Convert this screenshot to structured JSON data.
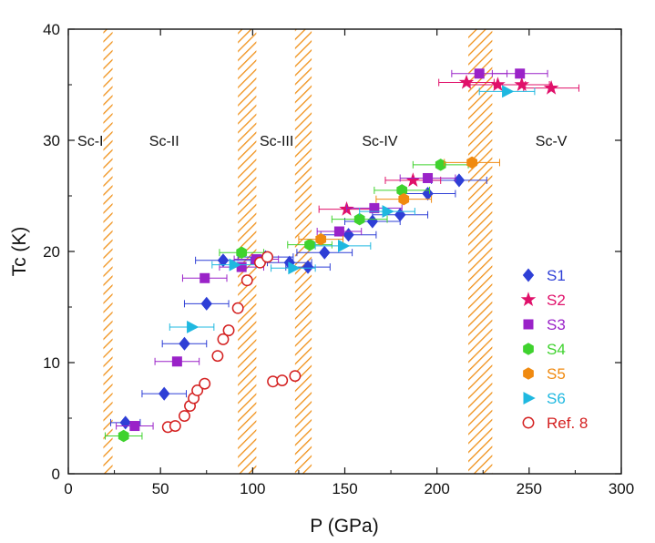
{
  "chart_data": {
    "type": "scatter",
    "xlabel": "P (GPa)",
    "ylabel": "Tc (K)",
    "xlim": [
      0,
      300
    ],
    "ylim": [
      0,
      40
    ],
    "x_ticks": [
      0,
      50,
      100,
      150,
      200,
      250,
      300
    ],
    "y_ticks": [
      0,
      10,
      20,
      30,
      40
    ],
    "grid": false,
    "legend_position": "right",
    "phase_boundaries": [
      {
        "from": 19,
        "to": 24
      },
      {
        "from": 92,
        "to": 102
      },
      {
        "from": 123,
        "to": 132
      },
      {
        "from": 217,
        "to": 230
      }
    ],
    "phases": [
      {
        "label": "Sc-I",
        "x": 12,
        "y": 29.5
      },
      {
        "label": "Sc-II",
        "x": 52,
        "y": 29.5
      },
      {
        "label": "Sc-III",
        "x": 113,
        "y": 29.5
      },
      {
        "label": "Sc-IV",
        "x": 169,
        "y": 29.5
      },
      {
        "label": "Sc-V",
        "x": 262,
        "y": 29.5
      }
    ],
    "series": [
      {
        "name": "S1",
        "color": "#2e3fd6",
        "marker": "diamond",
        "filled": true,
        "points": [
          [
            31,
            4.6,
            8
          ],
          [
            52,
            7.2,
            12
          ],
          [
            63,
            11.7,
            12
          ],
          [
            75,
            15.3,
            12
          ],
          [
            84,
            19.2,
            15
          ],
          [
            107,
            19.5,
            15
          ],
          [
            120,
            19,
            12
          ],
          [
            130,
            18.6,
            12
          ],
          [
            139,
            19.9,
            15
          ],
          [
            152,
            21.5,
            15
          ],
          [
            165,
            22.7,
            15
          ],
          [
            180,
            23.3,
            15
          ],
          [
            195,
            25.2,
            15
          ],
          [
            212,
            26.4,
            15
          ]
        ]
      },
      {
        "name": "S2",
        "color": "#e0106a",
        "marker": "star",
        "filled": true,
        "points": [
          [
            151,
            23.8,
            15
          ],
          [
            187,
            26.4,
            15
          ],
          [
            216,
            35.2,
            15
          ],
          [
            233,
            35,
            15
          ],
          [
            246,
            35,
            15
          ],
          [
            262,
            34.7,
            15
          ]
        ]
      },
      {
        "name": "S3",
        "color": "#9a22c8",
        "marker": "square",
        "filled": true,
        "points": [
          [
            36,
            4.3,
            10
          ],
          [
            59,
            10.1,
            12
          ],
          [
            74,
            17.6,
            12
          ],
          [
            94,
            18.6,
            12
          ],
          [
            102,
            19.3,
            12
          ],
          [
            147,
            21.8,
            12
          ],
          [
            166,
            23.9,
            15
          ],
          [
            195,
            26.6,
            15
          ],
          [
            223,
            36,
            15
          ],
          [
            245,
            36,
            15
          ]
        ]
      },
      {
        "name": "S4",
        "color": "#3fd22e",
        "marker": "hexagon",
        "filled": true,
        "points": [
          [
            30,
            3.4,
            10
          ],
          [
            94,
            19.9,
            12
          ],
          [
            131,
            20.6,
            12
          ],
          [
            158,
            22.9,
            15
          ],
          [
            181,
            25.5,
            15
          ],
          [
            202,
            27.8,
            15
          ]
        ]
      },
      {
        "name": "S5",
        "color": "#f08a10",
        "marker": "hexagon",
        "filled": true,
        "points": [
          [
            137,
            21.1,
            12
          ],
          [
            182,
            24.7,
            15
          ],
          [
            219,
            28,
            15
          ]
        ]
      },
      {
        "name": "S6",
        "color": "#1fb8e0",
        "marker": "triangle-right",
        "filled": true,
        "points": [
          [
            67,
            13.2,
            12
          ],
          [
            90,
            18.8,
            12
          ],
          [
            122,
            18.5,
            12
          ],
          [
            149,
            20.5,
            15
          ],
          [
            173,
            23.6,
            15
          ],
          [
            238,
            34.4,
            15
          ]
        ]
      },
      {
        "name": "Ref. 8",
        "color": "#d42020",
        "marker": "circle",
        "filled": false,
        "points": [
          [
            54,
            4.2
          ],
          [
            58,
            4.3
          ],
          [
            63,
            5.2
          ],
          [
            66,
            6.1
          ],
          [
            68,
            6.8
          ],
          [
            70,
            7.5
          ],
          [
            74,
            8.1
          ],
          [
            81,
            10.6
          ],
          [
            84,
            12.1
          ],
          [
            87,
            12.9
          ],
          [
            92,
            14.9
          ],
          [
            97,
            17.4
          ],
          [
            104,
            19
          ],
          [
            108,
            19.5
          ],
          [
            111,
            8.3
          ],
          [
            116,
            8.4
          ],
          [
            123,
            8.8
          ]
        ]
      }
    ]
  }
}
